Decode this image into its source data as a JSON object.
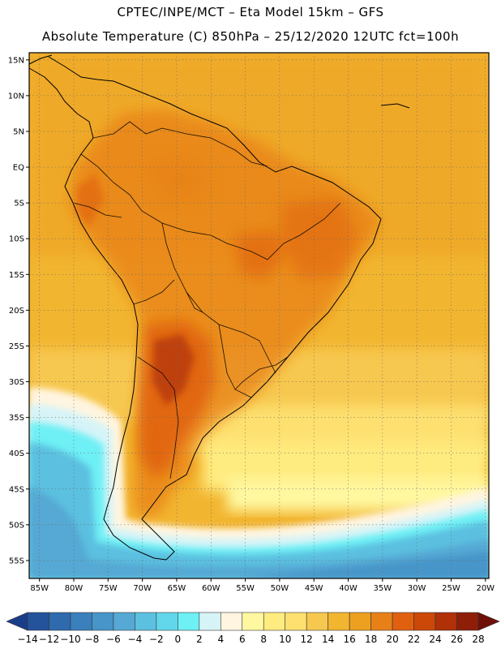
{
  "header": {
    "line1": "CPTEC/INPE/MCT –  Eta Model 15km – GFS",
    "line2": "Absolute Temperature (C) 850hPa – 25/12/2020 12UTC fct=100h"
  },
  "map": {
    "lat_ticks": [
      "15N",
      "10N",
      "5N",
      "EQ",
      "5S",
      "10S",
      "15S",
      "20S",
      "25S",
      "30S",
      "35S",
      "40S",
      "45S",
      "50S",
      "55S"
    ],
    "lon_ticks": [
      "85W",
      "80W",
      "75W",
      "70W",
      "65W",
      "60W",
      "55W",
      "50W",
      "45W",
      "40W",
      "35W",
      "30W",
      "25W",
      "20W"
    ],
    "lat_range": [
      16,
      -57.5
    ],
    "lon_range": [
      -86.5,
      -19.5
    ]
  },
  "colorbar": {
    "labels": [
      "-14",
      "-12",
      "-10",
      "-8",
      "-6",
      "-4",
      "-2",
      "0",
      "2",
      "4",
      "6",
      "8",
      "10",
      "12",
      "14",
      "16",
      "18",
      "20",
      "22",
      "24",
      "26",
      "28"
    ],
    "colors": [
      "#1a3d8a",
      "#24539c",
      "#2e6aad",
      "#3a80bd",
      "#4795c9",
      "#55a9d4",
      "#5cc0e0",
      "#62d6ea",
      "#6ef0f5",
      "#d6f4f8",
      "#fff5e0",
      "#fff8a0",
      "#ffec80",
      "#fde070",
      "#f7c850",
      "#f2b530",
      "#eda020",
      "#e88018",
      "#e06010",
      "#cc4808",
      "#b03008",
      "#8e1e08",
      "#6e1008"
    ]
  }
}
